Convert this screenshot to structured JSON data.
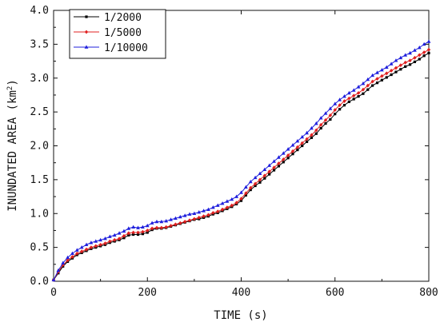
{
  "chart_data": {
    "type": "line",
    "title": "",
    "xlabel": "TIME (s)",
    "ylabel_main": "INUNDATED AREA (km",
    "ylabel_sup": "2",
    "ylabel_close": ")",
    "xlim": [
      0,
      800
    ],
    "ylim": [
      0,
      4.0
    ],
    "xticks": [
      0,
      200,
      400,
      600,
      800
    ],
    "xtick_labels": [
      "0",
      "200",
      "400",
      "600",
      "800"
    ],
    "yticks": [
      0,
      0.5,
      1.0,
      1.5,
      2.0,
      2.5,
      3.0,
      3.5,
      4.0
    ],
    "ytick_labels": [
      "0.0",
      "0.5",
      "1.0",
      "1.5",
      "2.0",
      "2.5",
      "3.0",
      "3.5",
      "4.0"
    ],
    "grid": false,
    "legend_position": "top-left",
    "x": [
      0,
      10,
      20,
      30,
      40,
      50,
      60,
      70,
      80,
      90,
      100,
      110,
      120,
      130,
      140,
      150,
      160,
      170,
      180,
      190,
      200,
      210,
      220,
      230,
      240,
      250,
      260,
      270,
      280,
      290,
      300,
      310,
      320,
      330,
      340,
      350,
      360,
      370,
      380,
      390,
      400,
      410,
      420,
      430,
      440,
      450,
      460,
      470,
      480,
      490,
      500,
      510,
      520,
      530,
      540,
      550,
      560,
      570,
      580,
      590,
      600,
      610,
      620,
      630,
      640,
      650,
      660,
      670,
      680,
      690,
      700,
      710,
      720,
      730,
      740,
      750,
      760,
      770,
      780,
      790,
      800
    ],
    "series": [
      {
        "name": "1/2000",
        "color": "#000000",
        "marker": "square",
        "values": [
          0.02,
          0.12,
          0.22,
          0.29,
          0.34,
          0.39,
          0.42,
          0.45,
          0.48,
          0.5,
          0.52,
          0.54,
          0.57,
          0.59,
          0.61,
          0.64,
          0.68,
          0.69,
          0.69,
          0.7,
          0.72,
          0.76,
          0.78,
          0.78,
          0.79,
          0.81,
          0.83,
          0.85,
          0.87,
          0.89,
          0.91,
          0.92,
          0.94,
          0.96,
          0.99,
          1.01,
          1.04,
          1.07,
          1.1,
          1.14,
          1.19,
          1.27,
          1.35,
          1.41,
          1.46,
          1.52,
          1.58,
          1.64,
          1.7,
          1.76,
          1.82,
          1.88,
          1.94,
          2.0,
          2.06,
          2.12,
          2.18,
          2.26,
          2.33,
          2.39,
          2.47,
          2.54,
          2.6,
          2.65,
          2.69,
          2.73,
          2.77,
          2.83,
          2.89,
          2.93,
          2.97,
          3.01,
          3.05,
          3.09,
          3.13,
          3.17,
          3.2,
          3.24,
          3.28,
          3.33,
          3.37
        ]
      },
      {
        "name": "1/5000",
        "color": "#e02020",
        "marker": "diamond",
        "values": [
          0.02,
          0.14,
          0.24,
          0.31,
          0.36,
          0.41,
          0.44,
          0.47,
          0.5,
          0.52,
          0.54,
          0.56,
          0.59,
          0.61,
          0.63,
          0.67,
          0.71,
          0.72,
          0.72,
          0.73,
          0.75,
          0.78,
          0.79,
          0.79,
          0.8,
          0.82,
          0.84,
          0.86,
          0.88,
          0.9,
          0.92,
          0.94,
          0.96,
          0.98,
          1.01,
          1.03,
          1.06,
          1.09,
          1.12,
          1.16,
          1.22,
          1.3,
          1.38,
          1.44,
          1.5,
          1.56,
          1.62,
          1.68,
          1.74,
          1.8,
          1.86,
          1.92,
          1.98,
          2.04,
          2.1,
          2.16,
          2.23,
          2.31,
          2.38,
          2.45,
          2.53,
          2.6,
          2.66,
          2.7,
          2.74,
          2.78,
          2.83,
          2.89,
          2.95,
          2.99,
          3.03,
          3.07,
          3.11,
          3.15,
          3.19,
          3.23,
          3.26,
          3.3,
          3.34,
          3.38,
          3.42
        ]
      },
      {
        "name": "1/10000",
        "color": "#1f1fdd",
        "marker": "triangle",
        "values": [
          0.02,
          0.16,
          0.27,
          0.35,
          0.41,
          0.46,
          0.5,
          0.54,
          0.57,
          0.59,
          0.61,
          0.63,
          0.66,
          0.68,
          0.71,
          0.74,
          0.78,
          0.8,
          0.79,
          0.8,
          0.82,
          0.86,
          0.88,
          0.88,
          0.89,
          0.91,
          0.93,
          0.95,
          0.97,
          0.99,
          1.0,
          1.02,
          1.04,
          1.06,
          1.09,
          1.12,
          1.15,
          1.18,
          1.21,
          1.25,
          1.31,
          1.39,
          1.47,
          1.53,
          1.59,
          1.65,
          1.71,
          1.77,
          1.83,
          1.89,
          1.95,
          2.01,
          2.07,
          2.13,
          2.19,
          2.26,
          2.33,
          2.41,
          2.48,
          2.55,
          2.62,
          2.68,
          2.73,
          2.78,
          2.82,
          2.87,
          2.92,
          2.98,
          3.04,
          3.08,
          3.12,
          3.16,
          3.21,
          3.26,
          3.3,
          3.34,
          3.37,
          3.41,
          3.45,
          3.5,
          3.54
        ]
      }
    ]
  }
}
